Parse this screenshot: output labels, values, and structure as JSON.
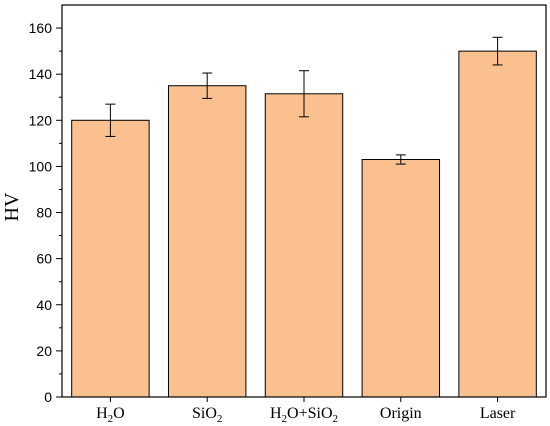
{
  "chart_data": {
    "type": "bar",
    "title": "",
    "xlabel": "",
    "ylabel": "HV",
    "ylim": [
      0,
      170
    ],
    "yticks": [
      0,
      20,
      40,
      60,
      80,
      100,
      120,
      140,
      160
    ],
    "categories": [
      {
        "base": "H",
        "sub": "2",
        "rest": "O"
      },
      {
        "base": "SiO",
        "sub": "2",
        "rest": ""
      },
      {
        "base": "H",
        "sub": "2",
        "rest": "O+SiO",
        "sub2": "2"
      },
      {
        "base": "Origin",
        "sub": "",
        "rest": ""
      },
      {
        "base": "Laser",
        "sub": "",
        "rest": ""
      }
    ],
    "values": [
      120,
      135,
      131.5,
      103,
      150
    ],
    "errors": [
      7,
      5.5,
      10,
      2,
      6
    ],
    "bar_color": "#FAC090",
    "grid": false,
    "legend": "none"
  }
}
